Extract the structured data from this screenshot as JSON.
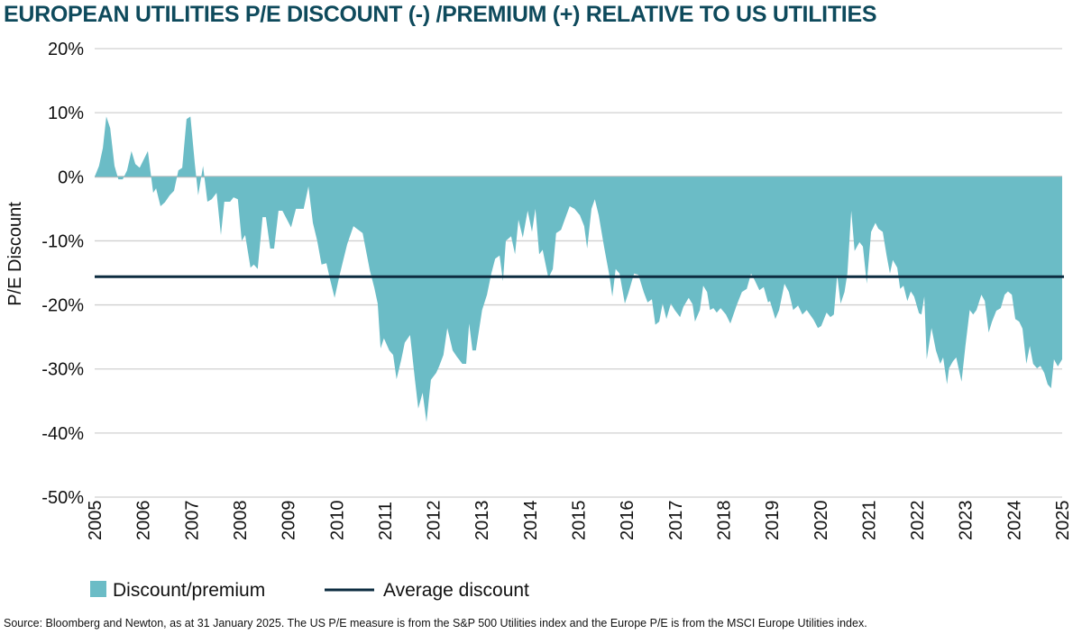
{
  "chart_data": {
    "type": "area",
    "title": "EUROPEAN UTILITIES P/E DISCOUNT (-) /PREMIUM (+) RELATIVE TO US UTILITIES",
    "xlabel": "",
    "ylabel": "P/E Discount",
    "xlim": [
      2005,
      2025
    ],
    "ylim": [
      -50,
      20
    ],
    "x_ticks": [
      "2005",
      "2006",
      "2007",
      "2008",
      "2009",
      "2010",
      "2011",
      "2012",
      "2013",
      "2014",
      "2015",
      "2016",
      "2017",
      "2018",
      "2019",
      "2020",
      "2021",
      "2022",
      "2023",
      "2024",
      "2025"
    ],
    "y_ticks": [
      {
        "value": 20,
        "label": "20%"
      },
      {
        "value": 10,
        "label": "10%"
      },
      {
        "value": 0,
        "label": "0%"
      },
      {
        "value": -10,
        "label": "-10%"
      },
      {
        "value": -20,
        "label": "-20%"
      },
      {
        "value": -30,
        "label": "-30%"
      },
      {
        "value": -40,
        "label": "-40%"
      },
      {
        "value": -50,
        "label": "-50%"
      }
    ],
    "grid": true,
    "legend_position": "bottom-left",
    "series": [
      {
        "name": "Discount/premium",
        "kind": "area",
        "color": "#6bbcc6",
        "points": [
          [
            2005.0,
            0
          ],
          [
            2005.09,
            1.7
          ],
          [
            2005.17,
            4.5
          ],
          [
            2005.24,
            9.4
          ],
          [
            2005.32,
            7.6
          ],
          [
            2005.41,
            1.7
          ],
          [
            2005.49,
            -0.4
          ],
          [
            2005.58,
            -0.4
          ],
          [
            2005.67,
            1
          ],
          [
            2005.76,
            4
          ],
          [
            2005.84,
            2
          ],
          [
            2005.93,
            1.4
          ],
          [
            2006.1,
            4
          ],
          [
            2006.21,
            -2.5
          ],
          [
            2006.27,
            -1.8
          ],
          [
            2006.36,
            -4.6
          ],
          [
            2006.45,
            -4
          ],
          [
            2006.55,
            -2.9
          ],
          [
            2006.64,
            -2.2
          ],
          [
            2006.73,
            1
          ],
          [
            2006.81,
            1.4
          ],
          [
            2006.9,
            9
          ],
          [
            2006.98,
            9.4
          ],
          [
            2007.07,
            2
          ],
          [
            2007.14,
            -2.9
          ],
          [
            2007.24,
            1.7
          ],
          [
            2007.33,
            -3.9
          ],
          [
            2007.42,
            -3.5
          ],
          [
            2007.52,
            -2.5
          ],
          [
            2007.61,
            -9.1
          ],
          [
            2007.68,
            -3.9
          ],
          [
            2007.8,
            -3.9
          ],
          [
            2007.87,
            -3.2
          ],
          [
            2007.96,
            -3.5
          ],
          [
            2008.04,
            -10
          ],
          [
            2008.11,
            -9.1
          ],
          [
            2008.22,
            -14.2
          ],
          [
            2008.29,
            -13.7
          ],
          [
            2008.37,
            -14.4
          ],
          [
            2008.47,
            -6.3
          ],
          [
            2008.54,
            -6.3
          ],
          [
            2008.63,
            -11.2
          ],
          [
            2008.71,
            -11.2
          ],
          [
            2008.8,
            -5.3
          ],
          [
            2008.88,
            -5.3
          ],
          [
            2009.06,
            -7.9
          ],
          [
            2009.16,
            -5
          ],
          [
            2009.32,
            -5
          ],
          [
            2009.42,
            -1.5
          ],
          [
            2009.51,
            -7.2
          ],
          [
            2009.6,
            -10
          ],
          [
            2009.69,
            -13.7
          ],
          [
            2009.79,
            -13.5
          ],
          [
            2009.86,
            -15.8
          ],
          [
            2009.96,
            -18.9
          ],
          [
            2010.05,
            -15.8
          ],
          [
            2010.13,
            -13.3
          ],
          [
            2010.22,
            -10.5
          ],
          [
            2010.35,
            -7.7
          ],
          [
            2010.54,
            -8.8
          ],
          [
            2010.63,
            -12.3
          ],
          [
            2010.69,
            -14.7
          ],
          [
            2010.78,
            -17.3
          ],
          [
            2010.85,
            -19.8
          ],
          [
            2010.91,
            -26.8
          ],
          [
            2010.98,
            -25.2
          ],
          [
            2011.09,
            -27.1
          ],
          [
            2011.17,
            -27.8
          ],
          [
            2011.24,
            -31.6
          ],
          [
            2011.34,
            -28.5
          ],
          [
            2011.41,
            -25.9
          ],
          [
            2011.52,
            -24.7
          ],
          [
            2011.62,
            -31.7
          ],
          [
            2011.69,
            -36.2
          ],
          [
            2011.78,
            -33.7
          ],
          [
            2011.86,
            -38.3
          ],
          [
            2011.95,
            -31.7
          ],
          [
            2012.06,
            -30.6
          ],
          [
            2012.12,
            -29.6
          ],
          [
            2012.21,
            -27.8
          ],
          [
            2012.29,
            -23.6
          ],
          [
            2012.4,
            -27.1
          ],
          [
            2012.49,
            -28.1
          ],
          [
            2012.6,
            -29.2
          ],
          [
            2012.68,
            -29.2
          ],
          [
            2012.74,
            -22.9
          ],
          [
            2012.81,
            -27.1
          ],
          [
            2012.88,
            -27.1
          ],
          [
            2013.01,
            -20.8
          ],
          [
            2013.11,
            -18.4
          ],
          [
            2013.2,
            -15.1
          ],
          [
            2013.28,
            -12.8
          ],
          [
            2013.37,
            -12.3
          ],
          [
            2013.44,
            -16.3
          ],
          [
            2013.5,
            -10
          ],
          [
            2013.61,
            -9.3
          ],
          [
            2013.69,
            -12.1
          ],
          [
            2013.76,
            -6.7
          ],
          [
            2013.85,
            -9.5
          ],
          [
            2013.95,
            -5.3
          ],
          [
            2014.04,
            -8.6
          ],
          [
            2014.11,
            -5
          ],
          [
            2014.19,
            -12.1
          ],
          [
            2014.26,
            -11.4
          ],
          [
            2014.38,
            -15.8
          ],
          [
            2014.47,
            -14.4
          ],
          [
            2014.54,
            -8.8
          ],
          [
            2014.64,
            -8.3
          ],
          [
            2014.75,
            -6
          ],
          [
            2014.82,
            -4.6
          ],
          [
            2014.92,
            -5
          ],
          [
            2015.03,
            -6
          ],
          [
            2015.12,
            -7.7
          ],
          [
            2015.18,
            -11.2
          ],
          [
            2015.27,
            -5
          ],
          [
            2015.34,
            -3.5
          ],
          [
            2015.42,
            -6
          ],
          [
            2015.53,
            -10.9
          ],
          [
            2015.64,
            -15.4
          ],
          [
            2015.7,
            -18.7
          ],
          [
            2015.77,
            -14.4
          ],
          [
            2015.85,
            -15.1
          ],
          [
            2015.96,
            -19.8
          ],
          [
            2016.03,
            -18.2
          ],
          [
            2016.15,
            -15.1
          ],
          [
            2016.24,
            -15.3
          ],
          [
            2016.35,
            -18
          ],
          [
            2016.43,
            -19.6
          ],
          [
            2016.52,
            -19.1
          ],
          [
            2016.59,
            -23.1
          ],
          [
            2016.67,
            -22.6
          ],
          [
            2016.74,
            -19.8
          ],
          [
            2016.82,
            -22.2
          ],
          [
            2016.91,
            -19.8
          ],
          [
            2016.99,
            -20.8
          ],
          [
            2017.1,
            -21.9
          ],
          [
            2017.17,
            -20.3
          ],
          [
            2017.28,
            -18.9
          ],
          [
            2017.36,
            -19.9
          ],
          [
            2017.41,
            -22.6
          ],
          [
            2017.51,
            -20.8
          ],
          [
            2017.58,
            -17
          ],
          [
            2017.66,
            -18
          ],
          [
            2017.72,
            -20.8
          ],
          [
            2017.79,
            -20.5
          ],
          [
            2017.86,
            -21.2
          ],
          [
            2017.94,
            -20.5
          ],
          [
            2018.05,
            -21.5
          ],
          [
            2018.14,
            -22.9
          ],
          [
            2018.27,
            -20.1
          ],
          [
            2018.38,
            -18
          ],
          [
            2018.48,
            -17.5
          ],
          [
            2018.57,
            -15.1
          ],
          [
            2018.64,
            -16.1
          ],
          [
            2018.74,
            -17.7
          ],
          [
            2018.83,
            -17.2
          ],
          [
            2018.92,
            -19.6
          ],
          [
            2018.96,
            -19.4
          ],
          [
            2019.07,
            -22.2
          ],
          [
            2019.15,
            -20.8
          ],
          [
            2019.26,
            -16.7
          ],
          [
            2019.35,
            -18
          ],
          [
            2019.44,
            -20.8
          ],
          [
            2019.54,
            -20.1
          ],
          [
            2019.63,
            -21.5
          ],
          [
            2019.72,
            -20.8
          ],
          [
            2019.86,
            -22.3
          ],
          [
            2019.95,
            -23.6
          ],
          [
            2020.02,
            -23.3
          ],
          [
            2020.13,
            -21.2
          ],
          [
            2020.21,
            -21.9
          ],
          [
            2020.28,
            -21.5
          ],
          [
            2020.35,
            -15.3
          ],
          [
            2020.42,
            -19.8
          ],
          [
            2020.5,
            -18
          ],
          [
            2020.56,
            -15.1
          ],
          [
            2020.64,
            -5.3
          ],
          [
            2020.71,
            -11.6
          ],
          [
            2020.81,
            -10.2
          ],
          [
            2020.88,
            -10.9
          ],
          [
            2020.96,
            -16.7
          ],
          [
            2021.05,
            -8.6
          ],
          [
            2021.14,
            -7.2
          ],
          [
            2021.2,
            -8.1
          ],
          [
            2021.29,
            -8.6
          ],
          [
            2021.37,
            -12.3
          ],
          [
            2021.44,
            -15.1
          ],
          [
            2021.5,
            -13
          ],
          [
            2021.59,
            -14.2
          ],
          [
            2021.65,
            -17.5
          ],
          [
            2021.72,
            -17
          ],
          [
            2021.8,
            -19.4
          ],
          [
            2021.87,
            -17.9
          ],
          [
            2021.94,
            -18.7
          ],
          [
            2022.04,
            -21.3
          ],
          [
            2022.09,
            -21.5
          ],
          [
            2022.15,
            -18.7
          ],
          [
            2022.2,
            -28.5
          ],
          [
            2022.3,
            -23.6
          ],
          [
            2022.39,
            -27.1
          ],
          [
            2022.48,
            -29.2
          ],
          [
            2022.54,
            -28.2
          ],
          [
            2022.62,
            -32.4
          ],
          [
            2022.66,
            -29.9
          ],
          [
            2022.74,
            -28.8
          ],
          [
            2022.81,
            -28.2
          ],
          [
            2022.92,
            -32
          ],
          [
            2023.0,
            -26.4
          ],
          [
            2023.09,
            -20.8
          ],
          [
            2023.16,
            -21.5
          ],
          [
            2023.23,
            -20.8
          ],
          [
            2023.33,
            -18.4
          ],
          [
            2023.4,
            -19.4
          ],
          [
            2023.48,
            -24.3
          ],
          [
            2023.55,
            -22.6
          ],
          [
            2023.64,
            -20.9
          ],
          [
            2023.73,
            -20.5
          ],
          [
            2023.81,
            -18.4
          ],
          [
            2023.88,
            -17.9
          ],
          [
            2023.96,
            -18.4
          ],
          [
            2024.03,
            -22.2
          ],
          [
            2024.11,
            -22.6
          ],
          [
            2024.18,
            -23.7
          ],
          [
            2024.26,
            -29.2
          ],
          [
            2024.33,
            -26.4
          ],
          [
            2024.4,
            -29.2
          ],
          [
            2024.48,
            -29.9
          ],
          [
            2024.55,
            -29.5
          ],
          [
            2024.63,
            -30.6
          ],
          [
            2024.7,
            -32.4
          ],
          [
            2024.77,
            -33
          ],
          [
            2024.83,
            -28.5
          ],
          [
            2024.91,
            -29.6
          ],
          [
            2025.0,
            -28.5
          ]
        ]
      },
      {
        "name": "Average discount",
        "kind": "line",
        "color": "#0d2c40",
        "value": -15.6
      }
    ]
  },
  "source": "Source: Bloomberg and Newton, as at 31 January 2025. The US P/E measure is from the S&P 500 Utilities index and the Europe P/E is from the MSCI Europe Utilities index."
}
